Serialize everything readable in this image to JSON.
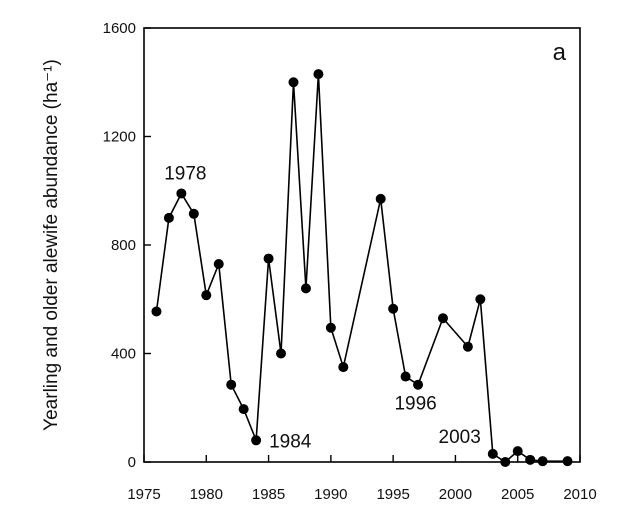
{
  "chart_data": {
    "type": "line",
    "panel_label": "a",
    "ylabel": "Yearling and older alewife abundance (ha⁻¹)",
    "xlabel": "",
    "xlim": [
      1975,
      2010
    ],
    "ylim": [
      0,
      1600
    ],
    "xticks": [
      1975,
      1980,
      1985,
      1990,
      1995,
      2000,
      2005,
      2010
    ],
    "yticks": [
      0,
      400,
      800,
      1200,
      1600
    ],
    "grid": false,
    "marker": "circle",
    "series": [
      {
        "color": "#000000",
        "points": [
          [
            1976,
            555
          ],
          [
            1977,
            900
          ],
          [
            1978,
            990
          ],
          [
            1979,
            915
          ],
          [
            1980,
            615
          ],
          [
            1981,
            730
          ],
          [
            1982,
            285
          ],
          [
            1983,
            195
          ],
          [
            1984,
            80
          ],
          [
            1985,
            750
          ],
          [
            1986,
            400
          ],
          [
            1987,
            1400
          ],
          [
            1988,
            640
          ],
          [
            1989,
            1430
          ],
          [
            1990,
            495
          ],
          [
            1991,
            350
          ],
          [
            1994,
            970
          ],
          [
            1995,
            565
          ],
          [
            1996,
            315
          ],
          [
            1997,
            285
          ],
          [
            1999,
            530
          ],
          [
            2001,
            425
          ],
          [
            2002,
            600
          ],
          [
            2003,
            30
          ],
          [
            2004,
            0
          ],
          [
            2005,
            40
          ],
          [
            2006,
            8
          ],
          [
            2007,
            3
          ],
          [
            2009,
            3
          ]
        ]
      }
    ],
    "annotations": [
      {
        "text": "1978",
        "x": 1978,
        "y": 990
      },
      {
        "text": "1984",
        "x": 1984,
        "y": 80
      },
      {
        "text": "1996",
        "x": 1996,
        "y": 315
      },
      {
        "text": "2003",
        "x": 2003,
        "y": 30
      }
    ]
  }
}
